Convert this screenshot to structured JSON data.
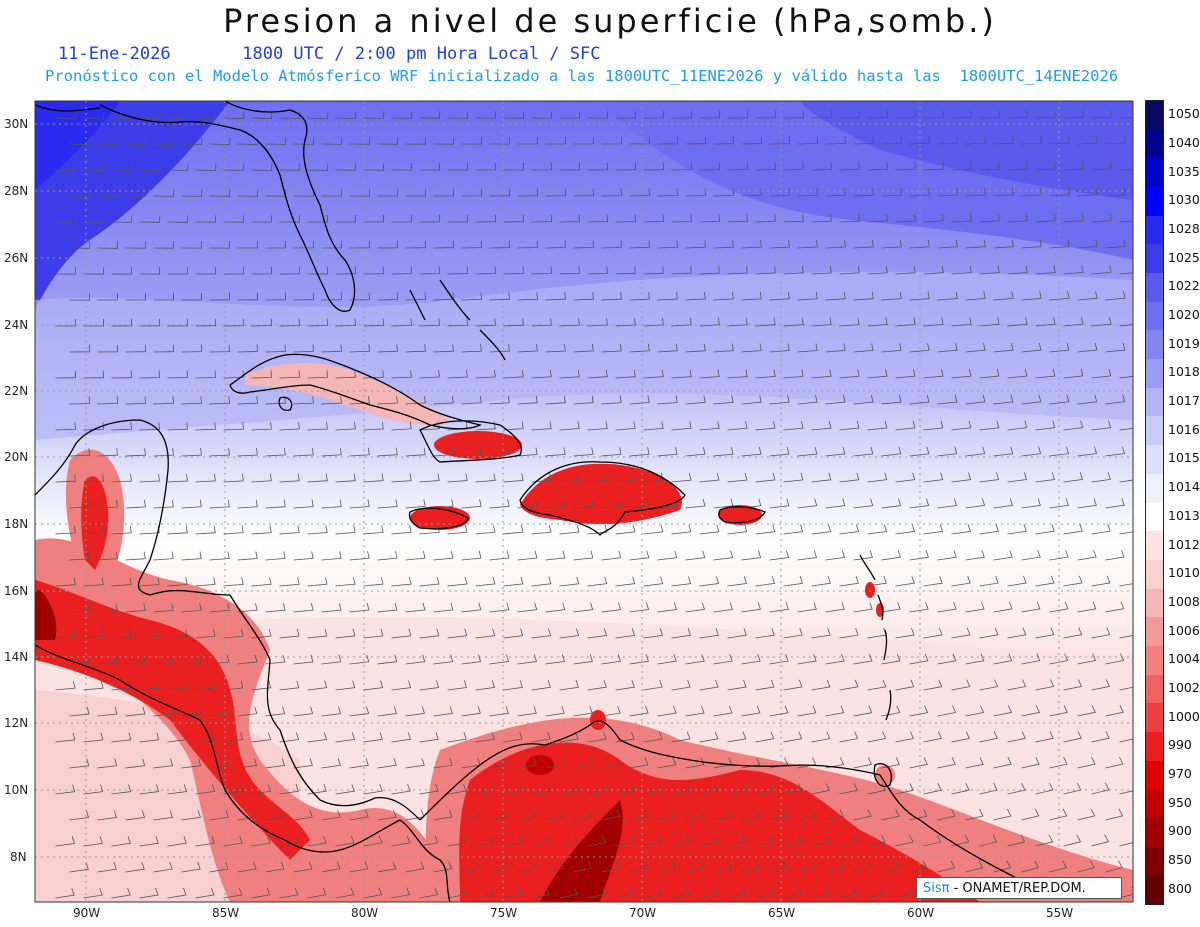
{
  "header": {
    "title": "Presion a nivel de superficie (hPa,somb.)",
    "date": "11-Ene-2026",
    "time_info": "1800 UTC / 2:00 pm Hora Local / SFC",
    "forecast_info": "Pronóstico con el Modelo Atmósferico WRF inicializado a las 1800UTC_11ENE2026 y válido hasta las  1800UTC_14ENE2026"
  },
  "axes": {
    "lat_labels": [
      "30N",
      "28N",
      "26N",
      "24N",
      "22N",
      "20N",
      "18N",
      "16N",
      "14N",
      "12N",
      "10N",
      "8N"
    ],
    "lon_labels": [
      "90W",
      "85W",
      "80W",
      "75W",
      "70W",
      "65W",
      "60W",
      "55W"
    ]
  },
  "colorbar": {
    "levels": [
      "1050",
      "1040",
      "1035",
      "1030",
      "1028",
      "1025",
      "1022",
      "1020",
      "1019",
      "1018",
      "1017",
      "1016",
      "1015",
      "1014",
      "1013",
      "1012",
      "1010",
      "1008",
      "1006",
      "1004",
      "1002",
      "1000",
      "990",
      "970",
      "950",
      "900",
      "850",
      "800"
    ],
    "colors": [
      "#0a0a60",
      "#00008c",
      "#0000c8",
      "#0000ff",
      "#2a2af0",
      "#3c3ce8",
      "#5a5aeb",
      "#6e6ef0",
      "#8484f2",
      "#9c9cf4",
      "#b4b4f6",
      "#cacaf8",
      "#dedefa",
      "#f0f0fc",
      "#ffffff",
      "#fbe3e3",
      "#f7d0d0",
      "#f4b6b6",
      "#f29a9a",
      "#f08080",
      "#ee6262",
      "#ec4040",
      "#ea2020",
      "#e00000",
      "#c00000",
      "#a00000",
      "#800000",
      "#600000"
    ]
  },
  "credit": {
    "brand": "Sisπ",
    "text": " - ONAMET/REP.DOM."
  }
}
